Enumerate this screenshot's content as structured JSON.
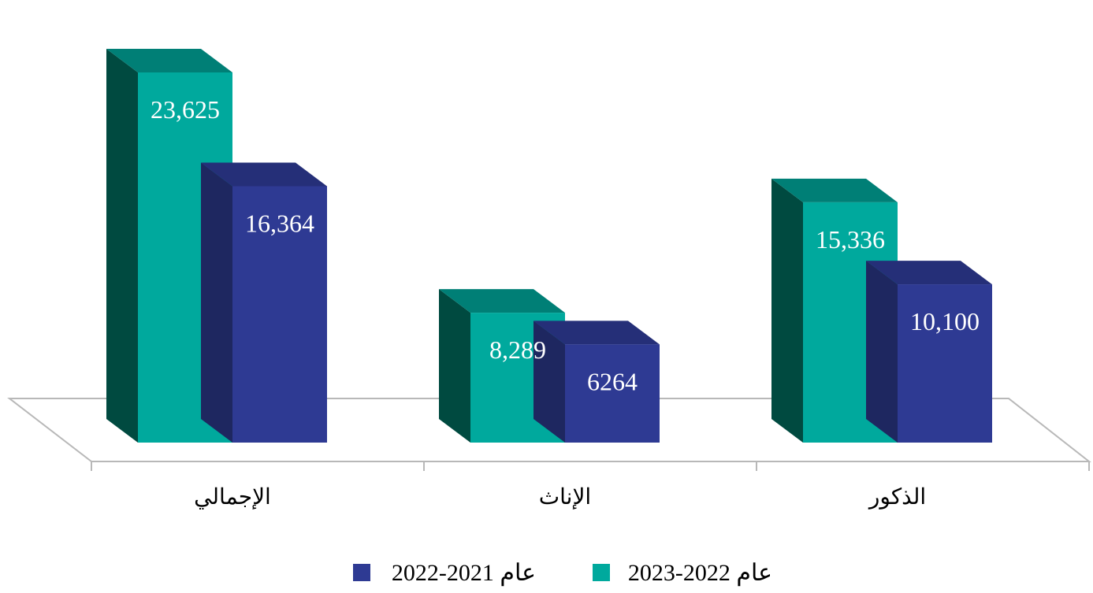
{
  "chart_data": {
    "type": "bar",
    "categories": [
      "الإجمالي",
      "الإناث",
      "الذكور"
    ],
    "series": [
      {
        "name": "2023-2022 عام",
        "values": [
          23625,
          8289,
          15336
        ],
        "labels": [
          "23,625",
          "8,289",
          "15,336"
        ],
        "color": "#00A99D",
        "side_color": "#004A40",
        "top_color": "#007F76"
      },
      {
        "name": "2022-2021 عام",
        "values": [
          16364,
          6264,
          10100
        ],
        "labels": [
          "16,364",
          "6264",
          "10,100"
        ],
        "color": "#2E3A93",
        "side_color": "#1E2760",
        "top_color": "#252F78"
      }
    ],
    "ylim": [
      0,
      25000
    ],
    "grid": false,
    "legend_position": "bottom",
    "three_d": true
  }
}
